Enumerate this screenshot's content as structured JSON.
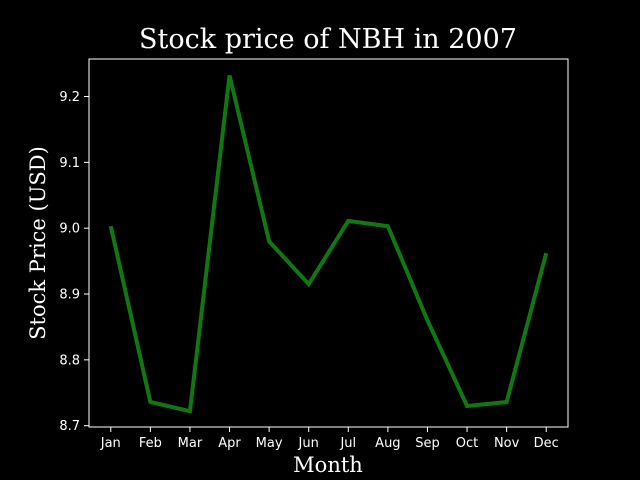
{
  "chart_data": {
    "type": "line",
    "title": "Stock price of NBH in 2007",
    "xlabel": "Month",
    "ylabel": "Stock Price (USD)",
    "categories": [
      "Jan",
      "Feb",
      "Mar",
      "Apr",
      "May",
      "Jun",
      "Jul",
      "Aug",
      "Sep",
      "Oct",
      "Nov",
      "Dec"
    ],
    "series": [
      {
        "values": [
          9.003,
          8.736,
          8.722,
          9.232,
          8.98,
          8.915,
          9.011,
          9.003,
          8.86,
          8.73,
          8.736,
          8.962
        ]
      }
    ],
    "ylim": [
      8.698,
      9.257
    ],
    "yticks": [
      8.7,
      8.8,
      8.9,
      9.0,
      9.1,
      9.2
    ],
    "ytick_labels": [
      "8.7",
      "8.8",
      "8.9",
      "9.0",
      "9.1",
      "9.2"
    ],
    "grid": false,
    "colors": {
      "background": "#000000",
      "line": "#117711",
      "text": "#ffffff",
      "axes": "#ffffff"
    }
  }
}
